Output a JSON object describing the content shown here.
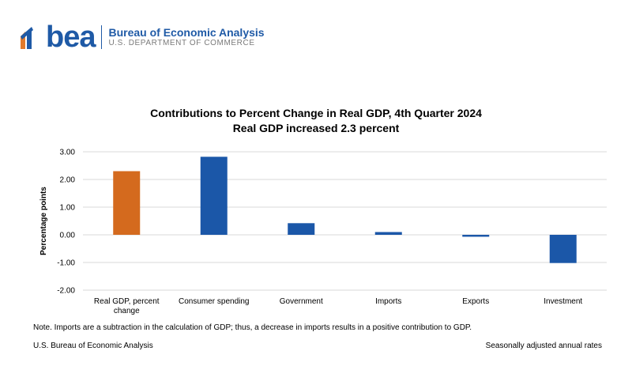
{
  "header": {
    "logo_word": "bea",
    "org_name": "Bureau of Economic Analysis",
    "department": "U.S. DEPARTMENT OF COMMERCE"
  },
  "colors": {
    "brand_blue": "#1f5aa6",
    "bar_blue": "#1b57a8",
    "bar_orange": "#d46a1e",
    "grid": "#d9d9d9"
  },
  "chart_data": {
    "type": "bar",
    "title": "Contributions to Percent Change in Real GDP, 4th Quarter 2024",
    "subtitle": "Real GDP increased 2.3 percent",
    "ylabel": "Percentage points",
    "xlabel": "",
    "categories": [
      [
        "Real GDP, percent",
        "change"
      ],
      [
        "Consumer spending"
      ],
      [
        "Government"
      ],
      [
        "Imports"
      ],
      [
        "Exports"
      ],
      [
        "Investment"
      ]
    ],
    "values": [
      2.3,
      2.82,
      0.42,
      0.1,
      -0.07,
      -1.02
    ],
    "bar_colors": [
      "#d46a1e",
      "#1b57a8",
      "#1b57a8",
      "#1b57a8",
      "#1b57a8",
      "#1b57a8"
    ],
    "ylim": [
      -2,
      3
    ],
    "yticks": [
      3,
      2,
      1,
      0,
      -1,
      -2
    ],
    "ytick_labels": [
      "3.00",
      "2.00",
      "1.00",
      "0.00",
      "-1.00",
      "-2.00"
    ],
    "grid": true,
    "legend": false
  },
  "footer": {
    "note": "Note. Imports are a subtraction in the calculation of GDP; thus, a decrease in imports results in a positive contribution to GDP.",
    "source": "U.S. Bureau of Economic Analysis",
    "rates": "Seasonally adjusted annual rates"
  }
}
